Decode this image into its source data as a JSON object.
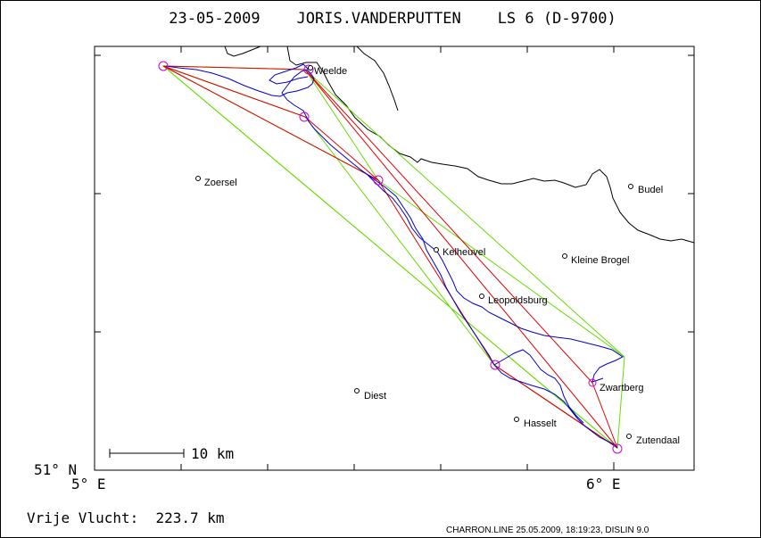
{
  "title": "23-05-2009    JORIS.VANDERPUTTEN    LS 6 (D-9700)",
  "axis": {
    "lat_label": "51° N",
    "lon_left_label": "5° E",
    "lon_right_label": "6° E"
  },
  "scale_bar_label": "10 km",
  "distance_label": "Vrije Vlucht:  223.7 km",
  "footer": "CHARRON.LINE 25.05.2009, 18:19:23, DISLIN 9.0",
  "towns": [
    {
      "name": "Weelde"
    },
    {
      "name": "Zoersel"
    },
    {
      "name": "Budel"
    },
    {
      "name": "Kelheuvel"
    },
    {
      "name": "Kleine Brogel"
    },
    {
      "name": "Leopoldsburg"
    },
    {
      "name": "Zwartberg"
    },
    {
      "name": "Diest"
    },
    {
      "name": "Hasselt"
    },
    {
      "name": "Zutendaal"
    }
  ],
  "colors": {
    "track": "#0000cc",
    "task_line": "#e00000",
    "faiarea_line": "#66dd00",
    "turnpoint": "#cc00cc",
    "border": "#000000"
  }
}
